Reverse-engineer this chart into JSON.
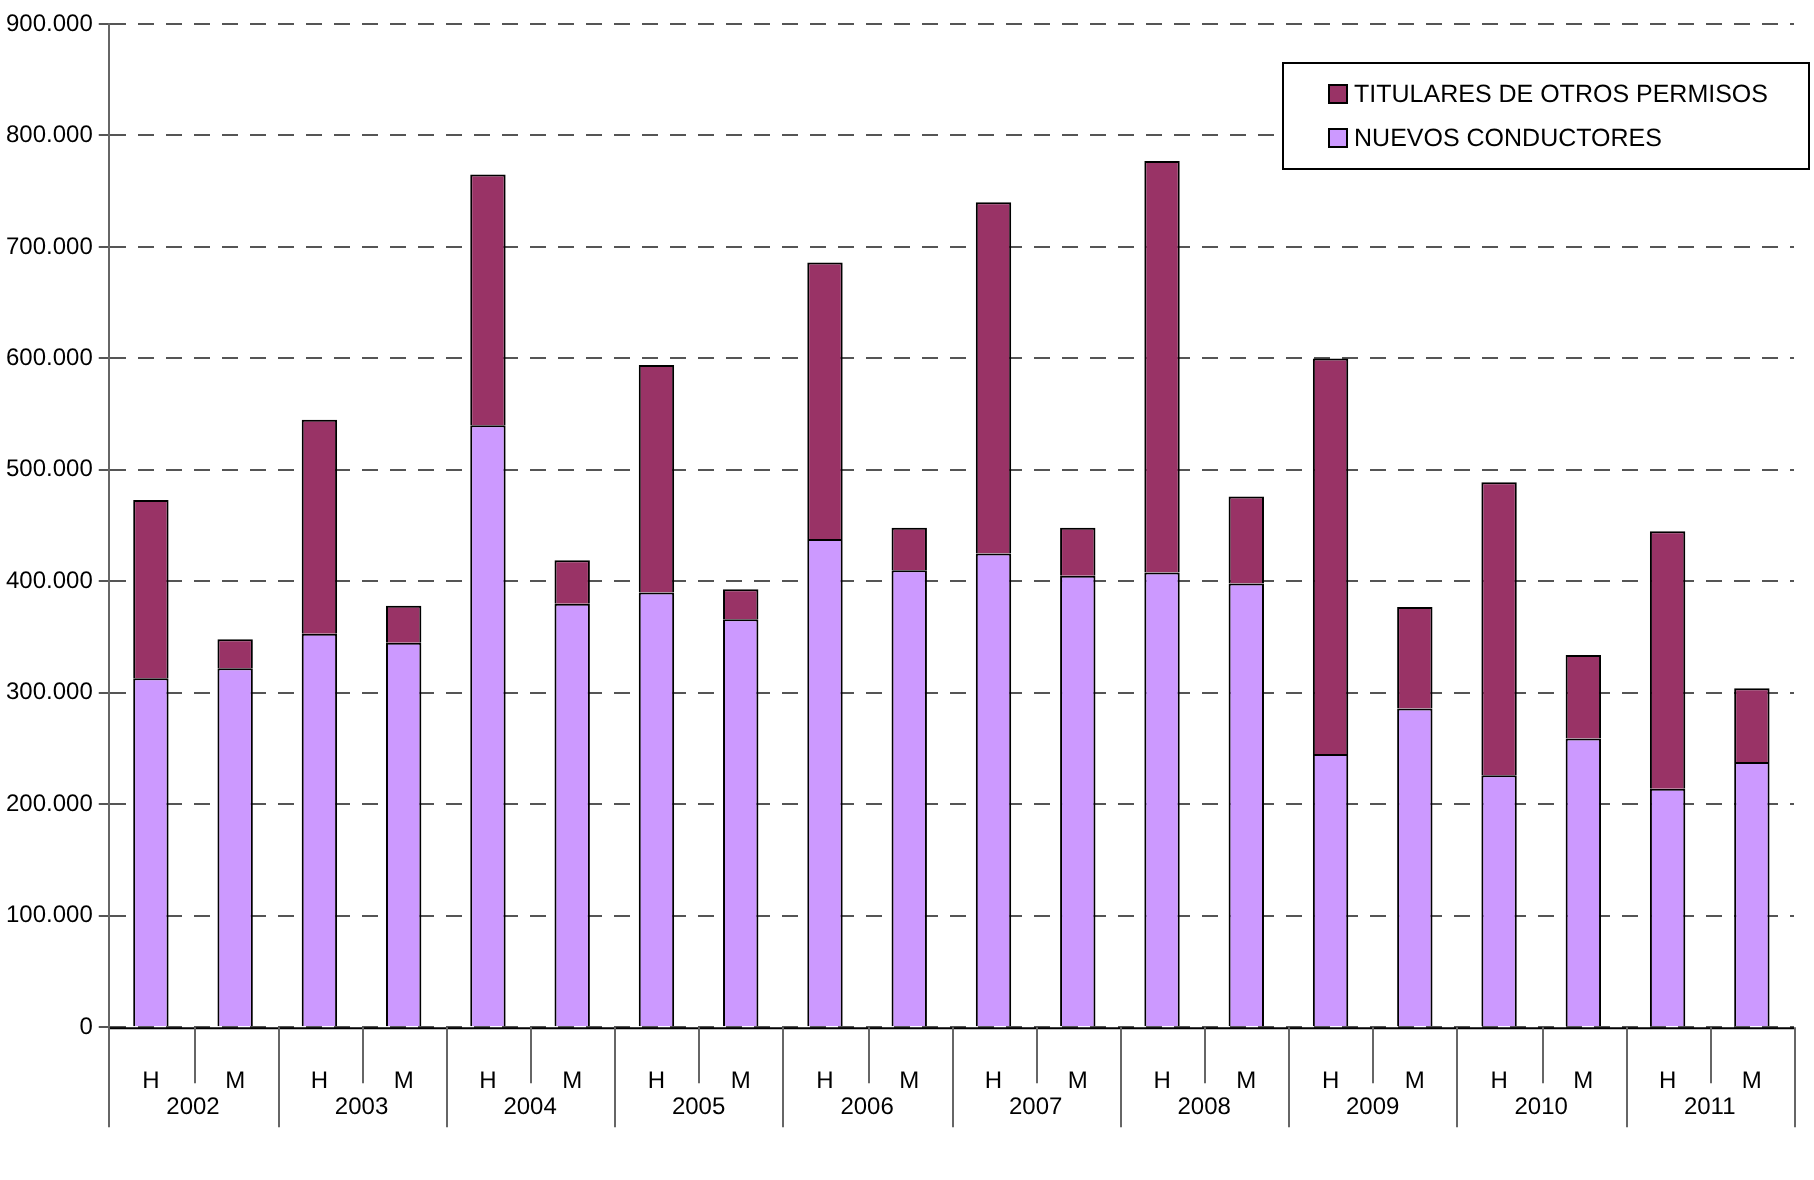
{
  "chart_data": {
    "type": "bar",
    "stacked": true,
    "categories": [
      "H",
      "M",
      "H",
      "M",
      "H",
      "M",
      "H",
      "M",
      "H",
      "M",
      "H",
      "M",
      "H",
      "M",
      "H",
      "M",
      "H",
      "M",
      "H",
      "M"
    ],
    "annotations": [
      "2002",
      "2003",
      "2004",
      "2005",
      "2006",
      "2007",
      "2008",
      "2009",
      "2010",
      "2011"
    ],
    "series": [
      {
        "name": "NUEVOS CONDUCTORES",
        "color": "#cc99ff",
        "values": [
          313000,
          322000,
          353000,
          345000,
          540000,
          380000,
          390000,
          366000,
          438000,
          410000,
          425000,
          405000,
          408000,
          398000,
          245000,
          286000,
          226000,
          259000,
          214000,
          238000
        ]
      },
      {
        "name": "TITULARES DE OTROS PERMISOS",
        "color": "#993366",
        "values": [
          160000,
          26000,
          192000,
          33000,
          225000,
          39000,
          204000,
          27000,
          248000,
          38000,
          315000,
          43000,
          369000,
          78000,
          355000,
          91000,
          263000,
          75000,
          231000,
          66000
        ]
      }
    ],
    "ylim": [
      0,
      900000
    ],
    "yticks": [
      {
        "value": 0,
        "label": "0"
      },
      {
        "value": 100000,
        "label": "100.000"
      },
      {
        "value": 200000,
        "label": "200.000"
      },
      {
        "value": 300000,
        "label": "300.000"
      },
      {
        "value": 400000,
        "label": "400.000"
      },
      {
        "value": 500000,
        "label": "500.000"
      },
      {
        "value": 600000,
        "label": "600.000"
      },
      {
        "value": 700000,
        "label": "700.000"
      },
      {
        "value": 800000,
        "label": "800.000"
      },
      {
        "value": 900000,
        "label": "900.000"
      }
    ],
    "grid": "y",
    "legend": "top right"
  }
}
